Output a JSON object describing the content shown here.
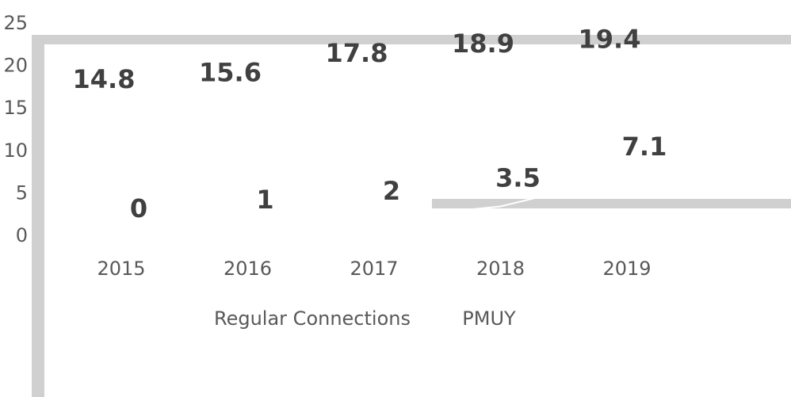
{
  "chart_data": {
    "type": "line",
    "categories": [
      "2015",
      "2016",
      "2017",
      "2018",
      "2019"
    ],
    "series": [
      {
        "name": "Regular Connections",
        "color": "#ffffff",
        "values": [
          14.8,
          15.6,
          17.8,
          18.9,
          19.4
        ]
      },
      {
        "name": "PMUY",
        "color": "#ffffff",
        "values": [
          0,
          1,
          2,
          3.5,
          7.1
        ]
      }
    ],
    "ylim": [
      0,
      25
    ],
    "yticks": [
      0,
      5,
      10,
      15,
      20,
      25
    ],
    "grid": false,
    "legend": "bottom"
  }
}
